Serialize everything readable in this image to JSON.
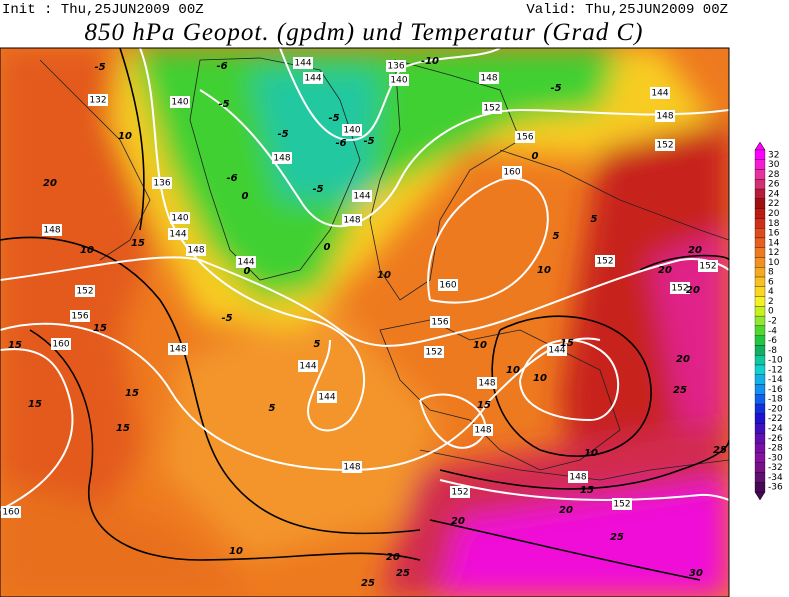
{
  "header": {
    "init": "Init : Thu,25JUN2009 00Z",
    "valid": "Valid: Thu,25JUN2009 00Z",
    "title": "850 hPa Geopot. (gpdm) und Temperatur (Grad C)"
  },
  "colorbar": {
    "ticks": [
      32,
      30,
      28,
      26,
      24,
      22,
      20,
      18,
      16,
      14,
      12,
      10,
      8,
      6,
      4,
      2,
      0,
      -2,
      -4,
      -6,
      -8,
      -10,
      -12,
      -14,
      -16,
      -18,
      -20,
      -22,
      -24,
      -26,
      -28,
      -30,
      -32,
      -34,
      -36
    ],
    "colors": [
      "#ff00ff",
      "#f51bd2",
      "#e8309f",
      "#d2306e",
      "#b81c3a",
      "#a01010",
      "#be1a14",
      "#d0301a",
      "#e04a1c",
      "#e86020",
      "#ee7a20",
      "#f29020",
      "#f5a820",
      "#f8c020",
      "#fad820",
      "#f5f020",
      "#c8f020",
      "#90e830",
      "#50d830",
      "#20c840",
      "#10b060",
      "#10c8a0",
      "#10d0d0",
      "#10b0e8",
      "#1090f0",
      "#1060f0",
      "#1030e0",
      "#2010d0",
      "#4010c0",
      "#6010b0",
      "#7810a8",
      "#8810a0",
      "#781088",
      "#601070",
      "#480858"
    ]
  },
  "map": {
    "geopotential_labels": [
      132,
      140,
      144,
      144,
      136,
      140,
      148,
      152,
      144,
      148,
      152,
      156,
      160,
      140,
      148,
      144,
      148,
      136,
      140,
      144,
      148,
      148,
      144,
      152,
      156,
      160,
      160,
      156,
      152,
      152,
      152,
      152,
      148,
      144,
      144,
      144,
      148,
      148,
      148,
      148,
      152,
      152,
      160
    ],
    "temperature_labels": [
      -5,
      10,
      20,
      10,
      15,
      15,
      15,
      15,
      15,
      15,
      -6,
      -5,
      -5,
      -5,
      -5,
      -6,
      -6,
      0,
      -5,
      0,
      0,
      -5,
      5,
      5,
      -10,
      -5,
      0,
      5,
      5,
      10,
      10,
      20,
      20,
      20,
      10,
      10,
      10,
      15,
      15,
      10,
      20,
      25,
      25,
      15,
      20,
      20,
      25,
      10,
      20,
      25,
      25,
      30
    ]
  }
}
